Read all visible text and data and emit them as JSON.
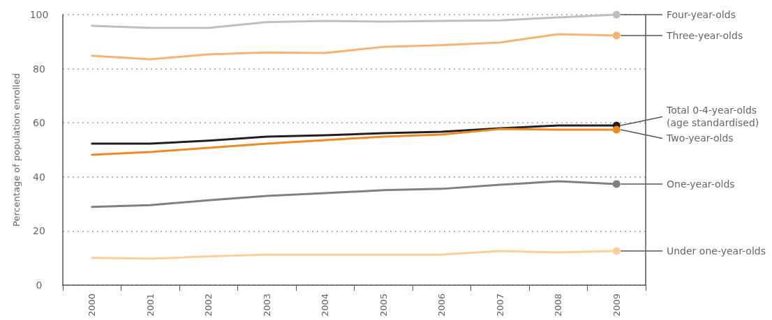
{
  "chart_data": {
    "type": "line",
    "ylabel": "Percentage of population enrolled",
    "categories": [
      "2000",
      "2001",
      "2002",
      "2003",
      "2004",
      "2005",
      "2006",
      "2007",
      "2008",
      "2009"
    ],
    "ylim": [
      0,
      100
    ],
    "yticks": [
      0,
      20,
      40,
      60,
      80,
      100
    ],
    "grid": "y",
    "legend": false,
    "marker": "none",
    "line_style": "solid",
    "series": [
      {
        "name": "Four-year-olds",
        "color": "#bfbfc3",
        "values": [
          95.9,
          95.1,
          95.1,
          97.2,
          97.7,
          97.4,
          97.7,
          97.9,
          99,
          100
        ]
      },
      {
        "name": "Three-year-olds",
        "color": "#f9b36e",
        "values": [
          84.8,
          83.5,
          85.3,
          86,
          85.8,
          88.1,
          88.7,
          89.7,
          92.8,
          92.3
        ]
      },
      {
        "name": "Total 0-4-year-olds (age standardised)",
        "color": "#231f20",
        "values": [
          52.3,
          52.3,
          53.4,
          54.9,
          55.4,
          56.2,
          56.7,
          58,
          59,
          59
        ]
      },
      {
        "name": "Two-year-olds",
        "color": "#f08a1e",
        "values": [
          48.2,
          49.2,
          50.8,
          52.3,
          53.6,
          54.9,
          55.7,
          57.7,
          57.5,
          57.5
        ]
      },
      {
        "name": "One-year-olds",
        "color": "#808083",
        "values": [
          28.9,
          29.6,
          31.4,
          33,
          34,
          35.1,
          35.6,
          37.1,
          38.4,
          37.4
        ]
      },
      {
        "name": "Under one-year-olds",
        "color": "#fdcd9a",
        "values": [
          10.1,
          9.8,
          10.6,
          11.3,
          11.3,
          11.3,
          11.3,
          12.6,
          12.1,
          12.6
        ]
      }
    ]
  }
}
